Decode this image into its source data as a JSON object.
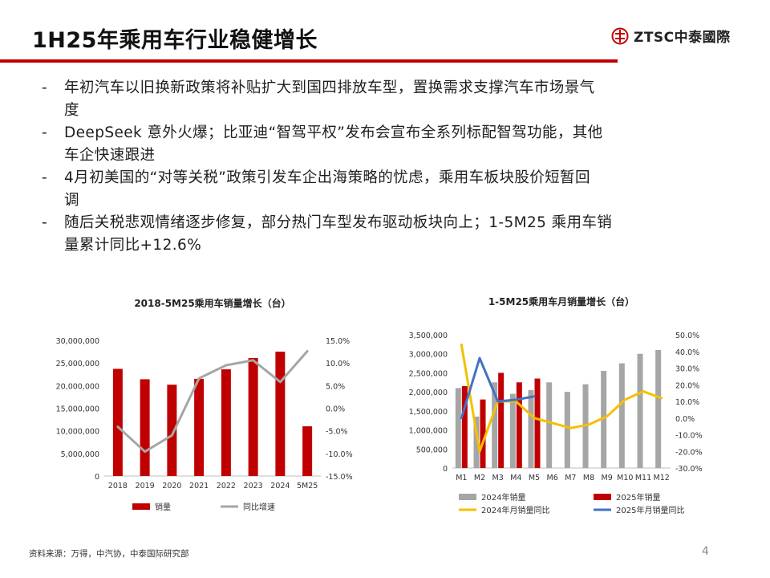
{
  "header": {
    "title": "1H25年乘用车行业稳健增长",
    "logo_text": "ZTSC中泰國際",
    "accent_color": "#c00000"
  },
  "bullets": [
    {
      "marker": "-",
      "lines": [
        "年初汽车以旧换新政策将补贴扩大到国四排放车型，置换需求支撑汽车市场景气",
        "度"
      ]
    },
    {
      "marker": "-",
      "lines": [
        "DeepSeek 意外火爆；比亚迪“智驾平权”发布会宣布全系列标配智驾功能，其他",
        "车企快速跟进"
      ]
    },
    {
      "marker": "-",
      "lines": [
        "4月初美国的“对等关税”政策引发车企出海策略的忧虑，乘用车板块股价短暂回",
        "调"
      ]
    },
    {
      "marker": "-",
      "lines": [
        "随后关税悲观情绪逐步修复，部分热门车型发布驱动板块向上；1-5M25 乘用车销",
        "量累计同比+12.6%"
      ]
    }
  ],
  "chart_data": [
    {
      "type": "bar+line",
      "title": "2018-5M25乘用车销量增长（台）",
      "categories": [
        "2018",
        "2019",
        "2020",
        "2021",
        "2022",
        "2023",
        "2024",
        "5M25"
      ],
      "series": [
        {
          "name": "销量",
          "type": "bar",
          "axis": "left",
          "color": "#c00000",
          "values": [
            23700000,
            21400000,
            20200000,
            21500000,
            23600000,
            26100000,
            27500000,
            11000000
          ]
        },
        {
          "name": "同比增速",
          "type": "line",
          "axis": "right",
          "color": "#a6a6a6",
          "values": [
            -4.1,
            -9.6,
            -6.0,
            6.6,
            9.5,
            10.6,
            5.8,
            12.6
          ]
        }
      ],
      "y_left": {
        "min": 0,
        "max": 30000000,
        "step": 5000000,
        "ticks": [
          "0",
          "5,000,000",
          "10,000,000",
          "15,000,000",
          "20,000,000",
          "25,000,000",
          "30,000,000"
        ]
      },
      "y_right": {
        "min": -15,
        "max": 15,
        "step": 5,
        "ticks": [
          "-15.0%",
          "-10.0%",
          "-5.0%",
          "0.0%",
          "5.0%",
          "10.0%",
          "15.0%"
        ]
      },
      "legend": [
        "销量",
        "同比增速"
      ],
      "legend_position": "bottom"
    },
    {
      "type": "bar+line",
      "title": "1-5M25乘用车月销量增长（台）",
      "categories": [
        "M1",
        "M2",
        "M3",
        "M4",
        "M5",
        "M6",
        "M7",
        "M8",
        "M9",
        "M10",
        "M11",
        "M12"
      ],
      "series": [
        {
          "name": "2024年销量",
          "type": "bar",
          "axis": "left",
          "color": "#a6a6a6",
          "values": [
            2100000,
            1350000,
            2250000,
            1950000,
            2050000,
            2250000,
            2000000,
            2200000,
            2550000,
            2750000,
            3000000,
            3100000
          ]
        },
        {
          "name": "2025年销量",
          "type": "bar",
          "axis": "left",
          "color": "#c00000",
          "values": [
            2150000,
            1800000,
            2500000,
            2250000,
            2350000,
            null,
            null,
            null,
            null,
            null,
            null,
            null
          ]
        },
        {
          "name": "2024年月销量同比",
          "type": "line",
          "axis": "right",
          "color": "#f5c000",
          "values": [
            44,
            -20,
            10,
            10,
            0,
            -3,
            -6,
            -4,
            1,
            11,
            16,
            12
          ]
        },
        {
          "name": "2025年月销量同比",
          "type": "line",
          "axis": "right",
          "color": "#4472c4",
          "values": [
            0,
            36,
            10,
            11,
            13,
            null,
            null,
            null,
            null,
            null,
            null,
            null
          ]
        }
      ],
      "y_left": {
        "min": 0,
        "max": 3500000,
        "step": 500000,
        "ticks": [
          "0",
          "500,000",
          "1,000,000",
          "1,500,000",
          "2,000,000",
          "2,500,000",
          "3,000,000",
          "3,500,000"
        ]
      },
      "y_right": {
        "min": -30,
        "max": 50,
        "step": 10,
        "ticks": [
          "-30.0%",
          "-20.0%",
          "-10.0%",
          "0.0%",
          "10.0%",
          "20.0%",
          "30.0%",
          "40.0%",
          "50.0%"
        ]
      },
      "legend": [
        "2024年销量",
        "2025年销量",
        "2024年月销量同比",
        "2025年月销量同比"
      ],
      "legend_position": "bottom"
    }
  ],
  "footer": {
    "source": "资料来源：万得，中汽协，中泰国际研究部",
    "page_number": "4"
  }
}
